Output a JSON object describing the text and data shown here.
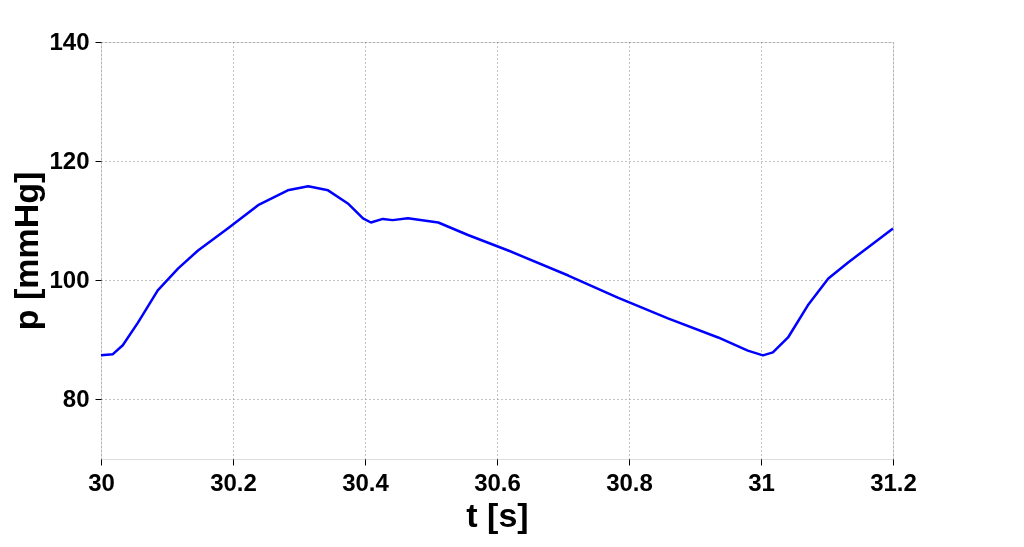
{
  "chart_data": {
    "type": "line",
    "xlabel": "t [s]",
    "ylabel": "p [mmHg]",
    "xlim": [
      30,
      31.2
    ],
    "xticks": [
      30,
      30.2,
      30.4,
      30.6,
      30.8,
      31,
      31.2
    ],
    "ylim": [
      70,
      140
    ],
    "yticks": [
      80,
      100,
      120,
      140
    ],
    "grid": true,
    "marker": "none",
    "line_style": "solid",
    "series": [
      {
        "color": "#0000ff",
        "x": [
          30.0,
          30.018,
          30.033,
          30.056,
          30.086,
          30.117,
          30.147,
          30.192,
          30.238,
          30.283,
          30.314,
          30.344,
          30.374,
          30.397,
          30.409,
          30.427,
          30.442,
          30.465,
          30.511,
          30.556,
          30.617,
          30.708,
          30.783,
          30.859,
          30.935,
          30.98,
          31.003,
          31.018,
          31.041,
          31.071,
          31.102,
          31.132,
          31.162,
          31.2
        ],
        "values": [
          87.4,
          87.6,
          89.1,
          92.9,
          98.3,
          102.0,
          105.0,
          108.7,
          112.6,
          115.1,
          115.8,
          115.1,
          112.9,
          110.4,
          109.7,
          110.3,
          110.1,
          110.4,
          109.7,
          107.6,
          105.0,
          100.8,
          97.1,
          93.6,
          90.4,
          88.2,
          87.4,
          87.9,
          90.4,
          95.8,
          100.3,
          103.0,
          105.5,
          108.7
        ]
      }
    ]
  }
}
